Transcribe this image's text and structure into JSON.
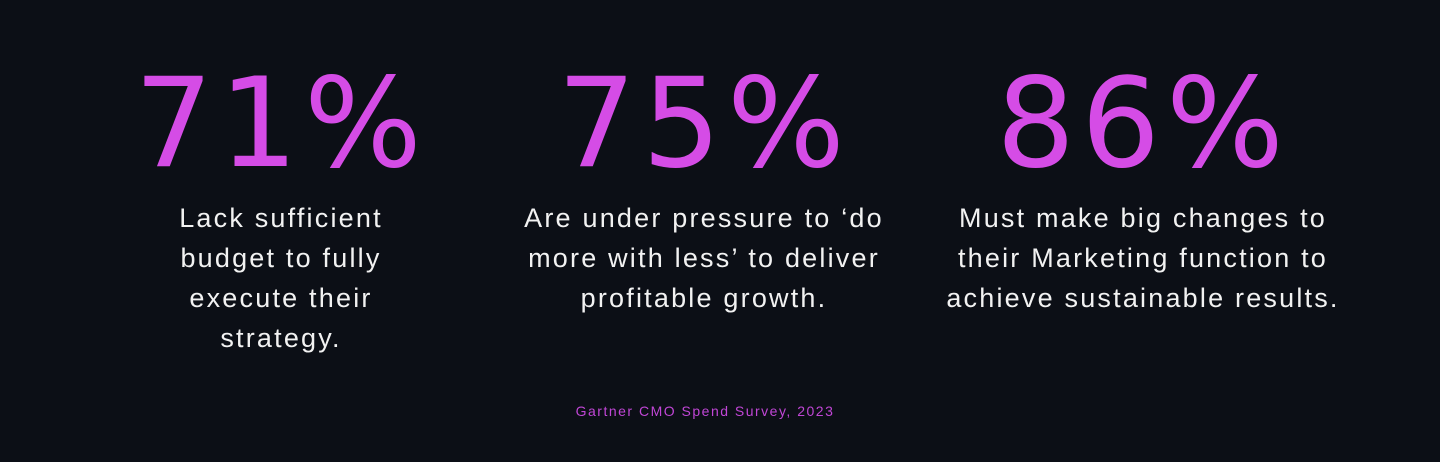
{
  "stats": [
    {
      "value": "71%",
      "text": "Lack sufficient budget to fully execute their strategy."
    },
    {
      "value": "75%",
      "text": "Are under pressure to ‘do more with less’ to deliver profitable growth."
    },
    {
      "value": "86%",
      "text": "Must make big changes to their Marketing function to achieve sustainable results."
    }
  ],
  "source": "Gartner CMO Spend Survey, 2023",
  "colors": {
    "background": "#0c0f16",
    "accent": "#d54ce6",
    "text": "#f2f2f2"
  }
}
